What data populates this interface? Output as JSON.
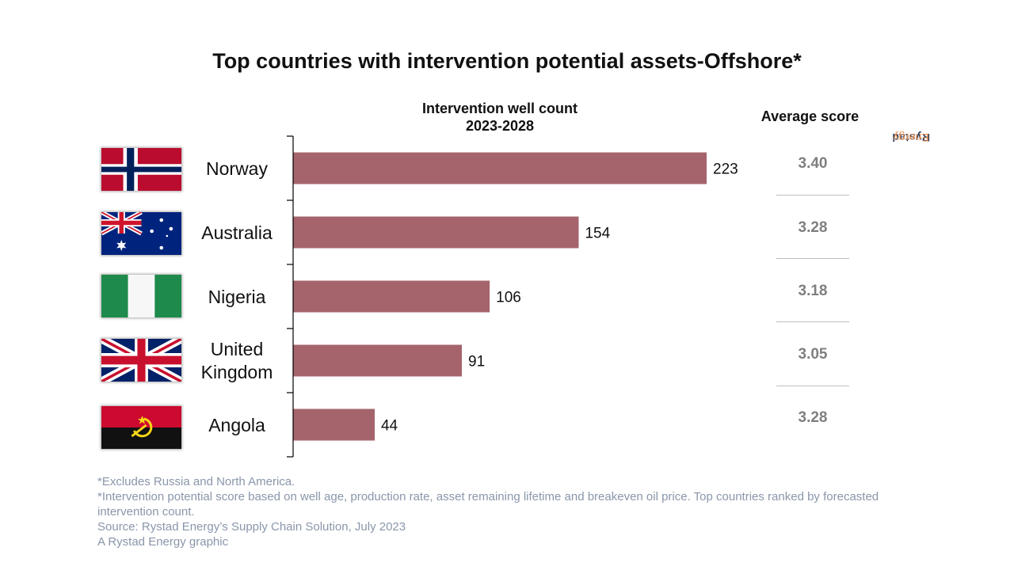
{
  "title": "Top countries with intervention potential assets-Offshore*",
  "column_header": {
    "line1": "Intervention well count",
    "line2": "2023-2028"
  },
  "average_header": "Average score",
  "brand": {
    "part1": "Rystad",
    "part2": "Energy"
  },
  "bar_color": "#a5646c",
  "rows": [
    {
      "country_line1": "Norway",
      "country_line2": "",
      "flag": "norway-flag-icon",
      "value_label": "223",
      "score": "3.40"
    },
    {
      "country_line1": "Australia",
      "country_line2": "",
      "flag": "australia-flag-icon",
      "value_label": "154",
      "score": "3.28"
    },
    {
      "country_line1": "Nigeria",
      "country_line2": "",
      "flag": "nigeria-flag-icon",
      "value_label": "106",
      "score": "3.18"
    },
    {
      "country_line1": "United",
      "country_line2": "Kingdom",
      "flag": "uk-flag-icon",
      "value_label": "91",
      "score": "3.05"
    },
    {
      "country_line1": "Angola",
      "country_line2": "",
      "flag": "angola-flag-icon",
      "value_label": "44",
      "score": "3.28"
    }
  ],
  "chart_data": {
    "type": "bar",
    "orientation": "horizontal",
    "title": "Top countries with intervention potential assets-Offshore*",
    "xlabel": "Intervention well count 2023-2028",
    "categories": [
      "Norway",
      "Australia",
      "Nigeria",
      "United Kingdom",
      "Angola"
    ],
    "values": [
      223,
      154,
      106,
      91,
      44
    ],
    "xlim": [
      0,
      223
    ],
    "average_scores": [
      3.4,
      3.28,
      3.18,
      3.05,
      3.28
    ],
    "grid": false,
    "legend": "none"
  },
  "notes": [
    "*Excludes Russia and North America.",
    "*Intervention potential score based on well age, production rate, asset remaining lifetime and breakeven oil price. Top countries ranked by forecasted intervention count.",
    "Source: Rystad Energy’s Supply Chain Solution, July 2023",
    "A Rystad Energy graphic"
  ]
}
